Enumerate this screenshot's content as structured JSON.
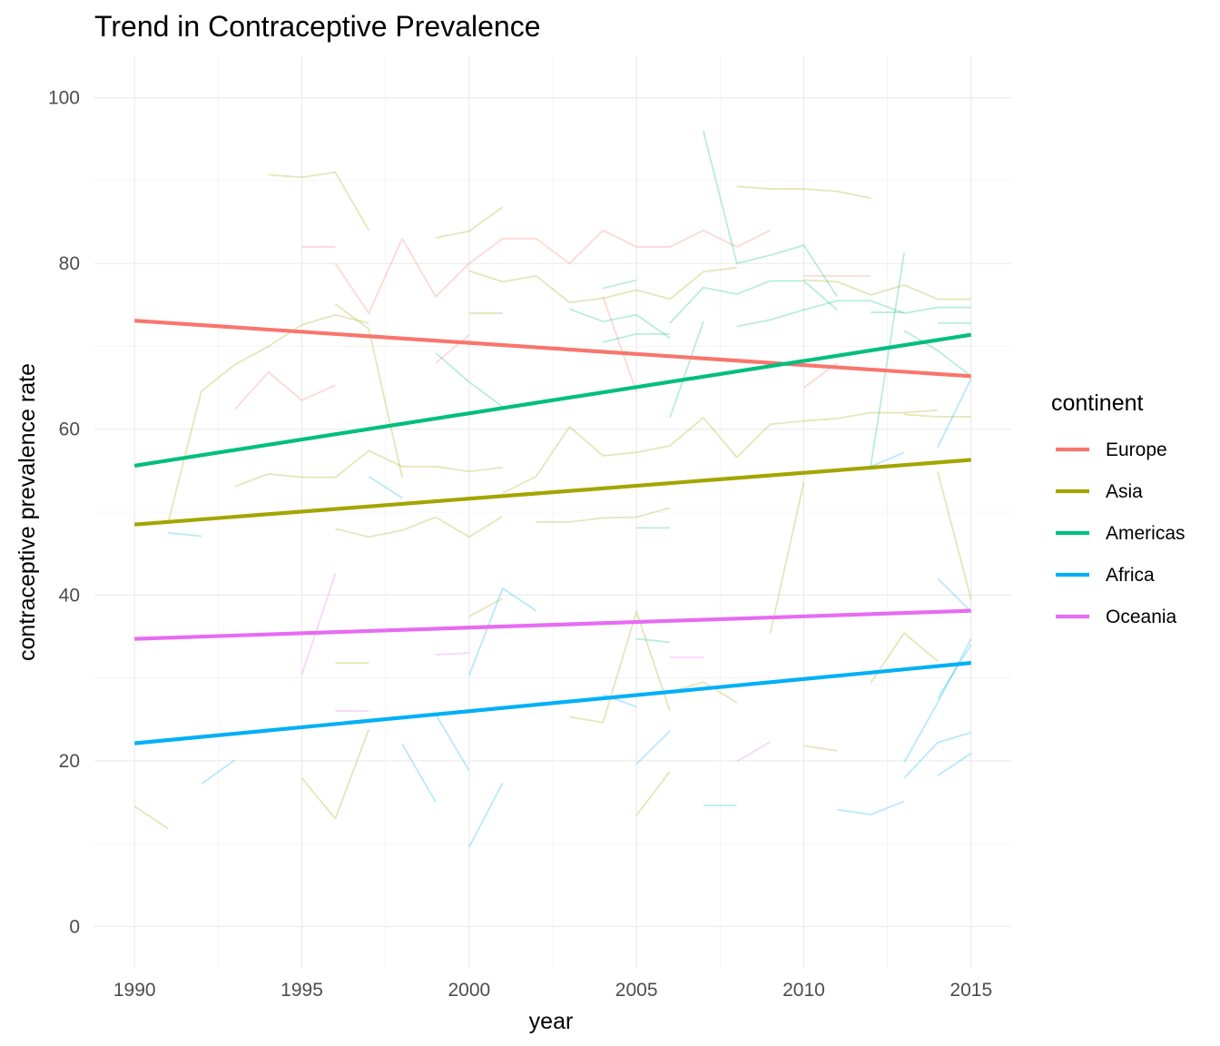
{
  "chart_data": {
    "type": "line",
    "title": "Trend in Contraceptive Prevalence",
    "xlabel": "year",
    "ylabel": "contraceptive prevalence rate",
    "xlim": [
      1988.8,
      2016.2
    ],
    "ylim": [
      -5,
      105
    ],
    "x_ticks": [
      1990,
      1995,
      2000,
      2005,
      2010,
      2015
    ],
    "y_ticks": [
      0,
      20,
      40,
      60,
      80,
      100
    ],
    "grid": true,
    "legend": {
      "title": "continent",
      "position": "right"
    },
    "series": [
      {
        "name": "Europe",
        "color": "#F8766D",
        "x": [
          1990,
          2015
        ],
        "y": [
          73.1,
          66.4
        ]
      },
      {
        "name": "Asia",
        "color": "#A3A500",
        "x": [
          1990,
          2015
        ],
        "y": [
          48.5,
          56.3
        ]
      },
      {
        "name": "Americas",
        "color": "#00BF7D",
        "x": [
          1990,
          2015
        ],
        "y": [
          55.6,
          71.4
        ]
      },
      {
        "name": "Africa",
        "color": "#00B0F6",
        "x": [
          1990,
          2015
        ],
        "y": [
          22.1,
          31.8
        ]
      },
      {
        "name": "Oceania",
        "color": "#E76BF3",
        "x": [
          1990,
          2015
        ],
        "y": [
          34.7,
          38.1
        ]
      }
    ],
    "country_lines": [
      {
        "continent": "Asia",
        "x": [
          1991,
          1992,
          1993,
          1994,
          1995,
          1996,
          1997
        ],
        "y": [
          48.7,
          64.6,
          67.8,
          70.0,
          72.6,
          73.8,
          72.8
        ]
      },
      {
        "continent": "Asia",
        "x": [
          1994,
          1995,
          1996,
          1997
        ],
        "y": [
          90.7,
          90.4,
          91.0,
          84.0
        ]
      },
      {
        "continent": "Asia",
        "x": [
          1993,
          1994,
          1995,
          1996,
          1997,
          1998,
          1999,
          2000,
          2001
        ],
        "y": [
          53.1,
          54.6,
          54.2,
          54.2,
          57.4,
          55.5,
          55.5,
          54.9,
          55.4
        ]
      },
      {
        "continent": "Asia",
        "x": [
          1996,
          1997,
          1998
        ],
        "y": [
          75.1,
          72.1,
          54.2
        ]
      },
      {
        "continent": "Asia",
        "x": [
          1996,
          1997,
          1998,
          1999,
          2000,
          2001
        ],
        "y": [
          48.0,
          47.0,
          47.8,
          49.4,
          47.0,
          49.5
        ]
      },
      {
        "continent": "Asia",
        "x": [
          1999,
          2000,
          2001
        ],
        "y": [
          83.1,
          83.9,
          86.8
        ]
      },
      {
        "continent": "Asia",
        "x": [
          2000,
          2001,
          2002,
          2003,
          2004,
          2005,
          2006,
          2007,
          2008
        ],
        "y": [
          79.1,
          77.8,
          78.5,
          75.3,
          75.8,
          76.8,
          75.7,
          79.0,
          79.5
        ]
      },
      {
        "continent": "Asia",
        "x": [
          2000,
          2001
        ],
        "y": [
          74.0,
          74.0
        ]
      },
      {
        "continent": "Asia",
        "x": [
          2001,
          2002,
          2003,
          2004,
          2005,
          2006,
          2007,
          2008,
          2009,
          2010,
          2011,
          2012,
          2013,
          2014
        ],
        "y": [
          52.3,
          54.3,
          60.3,
          56.8,
          57.2,
          58.0,
          61.4,
          56.6,
          60.6,
          61.0,
          61.3,
          62.0,
          62.0,
          62.3
        ]
      },
      {
        "continent": "Asia",
        "x": [
          2002,
          2003,
          2004,
          2005,
          2006
        ],
        "y": [
          48.8,
          48.8,
          49.3,
          49.4,
          50.5
        ]
      },
      {
        "continent": "Asia",
        "x": [
          2008,
          2009,
          2010,
          2011,
          2012
        ],
        "y": [
          89.3,
          89.0,
          89.0,
          88.7,
          87.9
        ]
      },
      {
        "continent": "Asia",
        "x": [
          2010,
          2011,
          2012,
          2013,
          2014,
          2015
        ],
        "y": [
          78.0,
          77.8,
          76.2,
          77.4,
          75.7,
          75.7
        ]
      },
      {
        "continent": "Asia",
        "x": [
          2014,
          2015
        ],
        "y": [
          54.9,
          39.5
        ]
      },
      {
        "continent": "Asia",
        "x": [
          2013,
          2014,
          2015
        ],
        "y": [
          61.8,
          61.5,
          61.5
        ]
      },
      {
        "continent": "Asia",
        "x": [
          1990,
          1991
        ],
        "y": [
          14.5,
          11.8
        ]
      },
      {
        "continent": "Asia",
        "x": [
          1995,
          1996,
          1997
        ],
        "y": [
          17.9,
          13.0,
          23.8
        ]
      },
      {
        "continent": "Asia",
        "x": [
          1996,
          1997
        ],
        "y": [
          31.8,
          31.8
        ]
      },
      {
        "continent": "Asia",
        "x": [
          2003,
          2004,
          2005,
          2006
        ],
        "y": [
          25.3,
          24.6,
          38.0,
          26.0
        ]
      },
      {
        "continent": "Asia",
        "x": [
          2005,
          2006
        ],
        "y": [
          13.4,
          18.7
        ]
      },
      {
        "continent": "Asia",
        "x": [
          2006,
          2007,
          2008
        ],
        "y": [
          28.3,
          29.5,
          27.0
        ]
      },
      {
        "continent": "Asia",
        "x": [
          2009,
          2010
        ],
        "y": [
          35.4,
          53.6
        ]
      },
      {
        "continent": "Asia",
        "x": [
          2012,
          2013,
          2014
        ],
        "y": [
          29.4,
          35.4,
          32.0
        ]
      },
      {
        "continent": "Asia",
        "x": [
          2010,
          2011
        ],
        "y": [
          21.8,
          21.2
        ]
      },
      {
        "continent": "Asia",
        "x": [
          2000,
          2001
        ],
        "y": [
          37.4,
          39.6
        ]
      },
      {
        "continent": "Europe",
        "x": [
          1995,
          1996
        ],
        "y": [
          82.0,
          82.0
        ]
      },
      {
        "continent": "Europe",
        "x": [
          1996,
          1997,
          1998,
          1999,
          2000,
          2001,
          2002,
          2003,
          2004,
          2005,
          2006,
          2007,
          2008,
          2009
        ],
        "y": [
          80.0,
          74.0,
          83.0,
          76.0,
          80.0,
          83.0,
          83.0,
          80.0,
          84.0,
          82.0,
          82.0,
          84.0,
          82.0,
          84.0
        ]
      },
      {
        "continent": "Europe",
        "x": [
          1993,
          1994,
          1995,
          1996
        ],
        "y": [
          62.4,
          66.9,
          63.5,
          65.3
        ]
      },
      {
        "continent": "Europe",
        "x": [
          1999,
          2000
        ],
        "y": [
          68.0,
          71.4
        ]
      },
      {
        "continent": "Europe",
        "x": [
          2004,
          2005
        ],
        "y": [
          76.0,
          64.5
        ]
      },
      {
        "continent": "Europe",
        "x": [
          2010,
          2011
        ],
        "y": [
          65.0,
          68.0
        ]
      },
      {
        "continent": "Europe",
        "x": [
          2010,
          2011,
          2012
        ],
        "y": [
          78.5,
          78.5,
          78.5
        ]
      },
      {
        "continent": "Americas",
        "x": [
          1999,
          2000,
          2001
        ],
        "y": [
          69.2,
          65.7,
          62.7
        ]
      },
      {
        "continent": "Americas",
        "x": [
          2003,
          2004,
          2005,
          2006
        ],
        "y": [
          74.5,
          73.0,
          73.8,
          71.0
        ]
      },
      {
        "continent": "Americas",
        "x": [
          2004,
          2005
        ],
        "y": [
          77.0,
          78.0
        ]
      },
      {
        "continent": "Americas",
        "x": [
          2004,
          2005,
          2006
        ],
        "y": [
          70.5,
          71.5,
          71.5
        ]
      },
      {
        "continent": "Americas",
        "x": [
          2006,
          2007,
          2008,
          2009,
          2010,
          2011
        ],
        "y": [
          72.8,
          77.1,
          76.3,
          77.9,
          77.9,
          74.4
        ]
      },
      {
        "continent": "Americas",
        "x": [
          2006,
          2007
        ],
        "y": [
          61.4,
          73.0
        ]
      },
      {
        "continent": "Americas",
        "x": [
          2007,
          2008,
          2009,
          2010,
          2011
        ],
        "y": [
          96.0,
          80.0,
          81.0,
          82.2,
          76.0
        ]
      },
      {
        "continent": "Americas",
        "x": [
          2008,
          2009,
          2010,
          2011,
          2012,
          2013,
          2014,
          2015
        ],
        "y": [
          72.4,
          73.2,
          74.4,
          75.5,
          75.5,
          74.0,
          74.7,
          74.7
        ]
      },
      {
        "continent": "Americas",
        "x": [
          2012,
          2013
        ],
        "y": [
          55.5,
          81.3
        ]
      },
      {
        "continent": "Americas",
        "x": [
          2013,
          2014,
          2015
        ],
        "y": [
          71.9,
          69.5,
          66.4
        ]
      },
      {
        "continent": "Americas",
        "x": [
          2012,
          2013
        ],
        "y": [
          74.1,
          74.1
        ]
      },
      {
        "continent": "Americas",
        "x": [
          2014,
          2015
        ],
        "y": [
          72.8,
          72.8
        ]
      },
      {
        "continent": "Americas",
        "x": [
          2005,
          2006
        ],
        "y": [
          48.1,
          48.1
        ]
      },
      {
        "continent": "Americas",
        "x": [
          2005,
          2006
        ],
        "y": [
          34.7,
          34.3
        ]
      },
      {
        "continent": "Africa",
        "x": [
          1997,
          1998
        ],
        "y": [
          54.3,
          51.7
        ]
      },
      {
        "continent": "Africa",
        "x": [
          1991,
          1992
        ],
        "y": [
          47.5,
          47.1
        ]
      },
      {
        "continent": "Africa",
        "x": [
          1992,
          1993
        ],
        "y": [
          17.2,
          20.1
        ]
      },
      {
        "continent": "Africa",
        "x": [
          1998,
          1999
        ],
        "y": [
          22.0,
          15.0
        ]
      },
      {
        "continent": "Africa",
        "x": [
          1999,
          2000
        ],
        "y": [
          25.6,
          18.8
        ]
      },
      {
        "continent": "Africa",
        "x": [
          2000,
          2001
        ],
        "y": [
          9.6,
          17.3
        ]
      },
      {
        "continent": "Africa",
        "x": [
          2000,
          2001,
          2002
        ],
        "y": [
          30.3,
          40.8,
          38.1
        ]
      },
      {
        "continent": "Africa",
        "x": [
          2004,
          2005
        ],
        "y": [
          28.0,
          26.5
        ]
      },
      {
        "continent": "Africa",
        "x": [
          2005,
          2006
        ],
        "y": [
          19.6,
          23.6
        ]
      },
      {
        "continent": "Africa",
        "x": [
          2007,
          2008
        ],
        "y": [
          14.6,
          14.6
        ]
      },
      {
        "continent": "Africa",
        "x": [
          2011,
          2012,
          2013
        ],
        "y": [
          14.1,
          13.5,
          15.1
        ]
      },
      {
        "continent": "Africa",
        "x": [
          2012,
          2013
        ],
        "y": [
          55.5,
          57.2
        ]
      },
      {
        "continent": "Africa",
        "x": [
          2013,
          2014,
          2015
        ],
        "y": [
          17.9,
          22.2,
          23.4
        ]
      },
      {
        "continent": "Africa",
        "x": [
          2014,
          2015
        ],
        "y": [
          18.2,
          20.9
        ]
      },
      {
        "continent": "Africa",
        "x": [
          2014,
          2015
        ],
        "y": [
          42.0,
          38.0
        ]
      },
      {
        "continent": "Africa",
        "x": [
          2014,
          2015
        ],
        "y": [
          57.8,
          66.1
        ]
      },
      {
        "continent": "Africa",
        "x": [
          2013,
          2014,
          2015
        ],
        "y": [
          19.8,
          27.0,
          34.7
        ]
      },
      {
        "continent": "Africa",
        "x": [
          2014,
          2015
        ],
        "y": [
          27.5,
          34.0
        ]
      },
      {
        "continent": "Oceania",
        "x": [
          1995,
          1996
        ],
        "y": [
          30.4,
          42.6
        ]
      },
      {
        "continent": "Oceania",
        "x": [
          1996,
          1997
        ],
        "y": [
          26.0,
          26.0
        ]
      },
      {
        "continent": "Oceania",
        "x": [
          1999,
          2000
        ],
        "y": [
          32.8,
          33.0
        ]
      },
      {
        "continent": "Oceania",
        "x": [
          2006,
          2007
        ],
        "y": [
          32.5,
          32.5
        ]
      },
      {
        "continent": "Oceania",
        "x": [
          2008,
          2009
        ],
        "y": [
          19.9,
          22.3
        ]
      }
    ]
  }
}
